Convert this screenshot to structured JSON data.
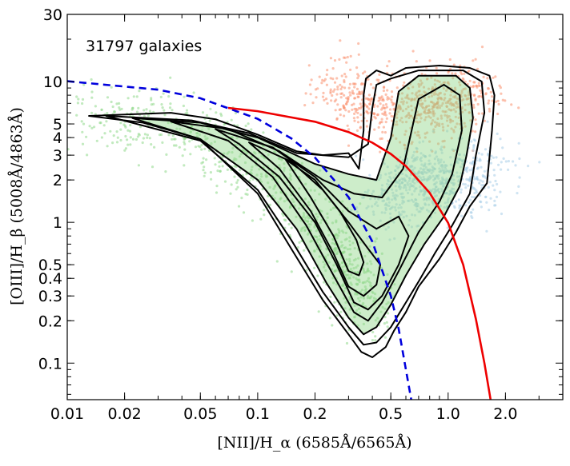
{
  "chart_data": {
    "type": "scatter",
    "annotation": "31797 galaxies",
    "xlabel": "[NII]/H_α  (6585Å/6565Å)",
    "ylabel": "[OIII]/H_β  (5008Å/4863Å)",
    "x_scale": "log",
    "y_scale": "log",
    "xlim": [
      0.01,
      4.0
    ],
    "ylim": [
      0.055,
      30
    ],
    "x_ticks": [
      {
        "value": 0.01,
        "label": "0.01"
      },
      {
        "value": 0.02,
        "label": "0.02"
      },
      {
        "value": 0.05,
        "label": "0.05"
      },
      {
        "value": 0.1,
        "label": "0.1"
      },
      {
        "value": 0.2,
        "label": "0.2"
      },
      {
        "value": 0.5,
        "label": "0.5"
      },
      {
        "value": 1.0,
        "label": "1.0"
      },
      {
        "value": 2.0,
        "label": "2.0"
      }
    ],
    "y_ticks": [
      {
        "value": 0.1,
        "label": "0.1"
      },
      {
        "value": 0.2,
        "label": "0.2"
      },
      {
        "value": 0.3,
        "label": "0.3"
      },
      {
        "value": 0.4,
        "label": "0.4"
      },
      {
        "value": 0.5,
        "label": "0.5"
      },
      {
        "value": 1,
        "label": "1"
      },
      {
        "value": 2,
        "label": "2"
      },
      {
        "value": 3,
        "label": "3"
      },
      {
        "value": 4,
        "label": "4"
      },
      {
        "value": 5,
        "label": "5"
      },
      {
        "value": 10,
        "label": "10"
      },
      {
        "value": 30,
        "label": "30"
      }
    ],
    "grid": false,
    "colors": {
      "star_forming": "#90d88a",
      "agn": "#f9906e",
      "composite": "#a8cde8",
      "kauffmann_line": "#0000dd",
      "kewley_line": "#ee0000",
      "contours": "#000000"
    },
    "curves": [
      {
        "style": "dashed",
        "color": "#0000dd",
        "points": [
          [
            0.01,
            10.06
          ],
          [
            0.03,
            8.75
          ],
          [
            0.05,
            7.61
          ],
          [
            0.1,
            5.43
          ],
          [
            0.15,
            3.95
          ],
          [
            0.2,
            2.88
          ],
          [
            0.3,
            1.51
          ],
          [
            0.4,
            0.73
          ],
          [
            0.5,
            0.3
          ],
          [
            0.55,
            0.175
          ],
          [
            0.6,
            0.09
          ],
          [
            0.64,
            0.055
          ]
        ]
      },
      {
        "style": "solid",
        "color": "#ee0000",
        "points": [
          [
            0.07,
            6.5
          ],
          [
            0.1,
            6.16
          ],
          [
            0.2,
            5.18
          ],
          [
            0.3,
            4.38
          ],
          [
            0.4,
            3.68
          ],
          [
            0.5,
            3.06
          ],
          [
            0.6,
            2.51
          ],
          [
            0.8,
            1.62
          ],
          [
            1.0,
            0.99
          ],
          [
            1.2,
            0.5
          ],
          [
            1.4,
            0.205
          ],
          [
            1.55,
            0.1
          ],
          [
            1.67,
            0.055
          ]
        ]
      }
    ],
    "clouds": [
      {
        "name": "star-forming",
        "color": "#90d88a",
        "spine": [
          [
            0.012,
            5.8
          ],
          [
            0.04,
            4.7
          ],
          [
            0.1,
            2.6
          ],
          [
            0.2,
            1.0
          ],
          [
            0.3,
            0.45
          ],
          [
            0.4,
            0.22
          ]
        ]
      },
      {
        "name": "AGN",
        "color": "#f9906e",
        "spine": [
          [
            0.25,
            9.5
          ],
          [
            0.4,
            7.0
          ],
          [
            0.7,
            6.0
          ],
          [
            1.0,
            7.0
          ],
          [
            1.5,
            8.5
          ]
        ]
      },
      {
        "name": "composite",
        "color": "#a8cde8",
        "spine": [
          [
            0.45,
            1.4
          ],
          [
            0.7,
            2.2
          ],
          [
            1.0,
            1.8
          ],
          [
            1.8,
            2.5
          ]
        ]
      }
    ],
    "contours": [
      [
        [
          0.013,
          5.7
        ],
        [
          0.035,
          6.0
        ],
        [
          0.06,
          5.4
        ],
        [
          0.1,
          4.2
        ],
        [
          0.16,
          3.2
        ],
        [
          0.22,
          3.0
        ],
        [
          0.3,
          3.1
        ],
        [
          0.34,
          2.4
        ],
        [
          0.36,
          4.5
        ],
        [
          0.36,
          8.0
        ],
        [
          0.37,
          10.5
        ],
        [
          0.42,
          12.0
        ],
        [
          0.5,
          11.0
        ],
        [
          0.6,
          12.5
        ],
        [
          0.9,
          13.0
        ],
        [
          1.3,
          12.5
        ],
        [
          1.65,
          11.0
        ],
        [
          1.75,
          8.0
        ],
        [
          1.7,
          4.5
        ],
        [
          1.6,
          1.9
        ],
        [
          1.3,
          1.3
        ],
        [
          1.1,
          0.85
        ],
        [
          0.9,
          0.55
        ],
        [
          0.7,
          0.35
        ],
        [
          0.6,
          0.23
        ],
        [
          0.52,
          0.17
        ],
        [
          0.47,
          0.13
        ],
        [
          0.4,
          0.11
        ],
        [
          0.35,
          0.12
        ],
        [
          0.3,
          0.16
        ],
        [
          0.22,
          0.28
        ],
        [
          0.15,
          0.65
        ],
        [
          0.1,
          1.6
        ],
        [
          0.05,
          3.9
        ],
        [
          0.025,
          5.1
        ],
        [
          0.013,
          5.7
        ]
      ],
      [
        [
          0.016,
          5.7
        ],
        [
          0.045,
          5.3
        ],
        [
          0.09,
          4.3
        ],
        [
          0.16,
          3.1
        ],
        [
          0.3,
          2.9
        ],
        [
          0.38,
          3.6
        ],
        [
          0.4,
          6.5
        ],
        [
          0.42,
          9.5
        ],
        [
          0.5,
          10.5
        ],
        [
          0.7,
          12.0
        ],
        [
          1.2,
          12.0
        ],
        [
          1.5,
          10.0
        ],
        [
          1.55,
          6.0
        ],
        [
          1.4,
          3.0
        ],
        [
          1.3,
          1.6
        ],
        [
          1.05,
          0.95
        ],
        [
          0.85,
          0.6
        ],
        [
          0.7,
          0.38
        ],
        [
          0.58,
          0.25
        ],
        [
          0.5,
          0.18
        ],
        [
          0.42,
          0.14
        ],
        [
          0.36,
          0.135
        ],
        [
          0.3,
          0.18
        ],
        [
          0.22,
          0.32
        ],
        [
          0.15,
          0.75
        ],
        [
          0.1,
          1.7
        ],
        [
          0.05,
          3.8
        ],
        [
          0.016,
          5.7
        ]
      ],
      [
        [
          0.022,
          5.5
        ],
        [
          0.05,
          5.1
        ],
        [
          0.1,
          4.0
        ],
        [
          0.2,
          2.6
        ],
        [
          0.3,
          2.2
        ],
        [
          0.42,
          2.0
        ],
        [
          0.5,
          4.0
        ],
        [
          0.55,
          8.5
        ],
        [
          0.7,
          11.0
        ],
        [
          1.1,
          11.0
        ],
        [
          1.3,
          9.0
        ],
        [
          1.35,
          5.5
        ],
        [
          1.25,
          3.0
        ],
        [
          1.15,
          1.8
        ],
        [
          0.95,
          1.1
        ],
        [
          0.75,
          0.7
        ],
        [
          0.6,
          0.42
        ],
        [
          0.5,
          0.26
        ],
        [
          0.42,
          0.18
        ],
        [
          0.36,
          0.16
        ],
        [
          0.3,
          0.21
        ],
        [
          0.23,
          0.37
        ],
        [
          0.16,
          0.9
        ],
        [
          0.1,
          2.0
        ],
        [
          0.05,
          3.9
        ],
        [
          0.022,
          5.5
        ]
      ],
      [
        [
          0.035,
          5.2
        ],
        [
          0.07,
          4.6
        ],
        [
          0.13,
          3.2
        ],
        [
          0.22,
          2.0
        ],
        [
          0.32,
          1.6
        ],
        [
          0.45,
          1.5
        ],
        [
          0.58,
          2.4
        ],
        [
          0.7,
          7.5
        ],
        [
          0.95,
          9.5
        ],
        [
          1.15,
          8.0
        ],
        [
          1.18,
          4.5
        ],
        [
          1.05,
          2.2
        ],
        [
          0.9,
          1.4
        ],
        [
          0.7,
          0.85
        ],
        [
          0.55,
          0.45
        ],
        [
          0.45,
          0.27
        ],
        [
          0.38,
          0.2
        ],
        [
          0.32,
          0.23
        ],
        [
          0.25,
          0.42
        ],
        [
          0.18,
          0.95
        ],
        [
          0.12,
          2.1
        ],
        [
          0.07,
          3.8
        ],
        [
          0.035,
          5.2
        ]
      ],
      [
        [
          0.06,
          4.6
        ],
        [
          0.12,
          3.4
        ],
        [
          0.2,
          2.1
        ],
        [
          0.3,
          1.2
        ],
        [
          0.42,
          0.9
        ],
        [
          0.55,
          1.1
        ],
        [
          0.62,
          0.8
        ],
        [
          0.55,
          0.5
        ],
        [
          0.45,
          0.3
        ],
        [
          0.38,
          0.24
        ],
        [
          0.32,
          0.27
        ],
        [
          0.26,
          0.5
        ],
        [
          0.2,
          1.0
        ],
        [
          0.13,
          2.1
        ],
        [
          0.08,
          3.6
        ],
        [
          0.06,
          4.6
        ]
      ],
      [
        [
          0.09,
          3.7
        ],
        [
          0.15,
          2.7
        ],
        [
          0.22,
          1.7
        ],
        [
          0.3,
          1.0
        ],
        [
          0.38,
          0.65
        ],
        [
          0.44,
          0.5
        ],
        [
          0.42,
          0.36
        ],
        [
          0.36,
          0.3
        ],
        [
          0.3,
          0.35
        ],
        [
          0.25,
          0.6
        ],
        [
          0.19,
          1.2
        ],
        [
          0.13,
          2.4
        ],
        [
          0.09,
          3.7
        ]
      ],
      [
        [
          0.14,
          2.8
        ],
        [
          0.2,
          2.0
        ],
        [
          0.27,
          1.2
        ],
        [
          0.33,
          0.75
        ],
        [
          0.36,
          0.52
        ],
        [
          0.34,
          0.42
        ],
        [
          0.3,
          0.45
        ],
        [
          0.25,
          0.8
        ],
        [
          0.19,
          1.5
        ],
        [
          0.14,
          2.8
        ]
      ]
    ]
  }
}
